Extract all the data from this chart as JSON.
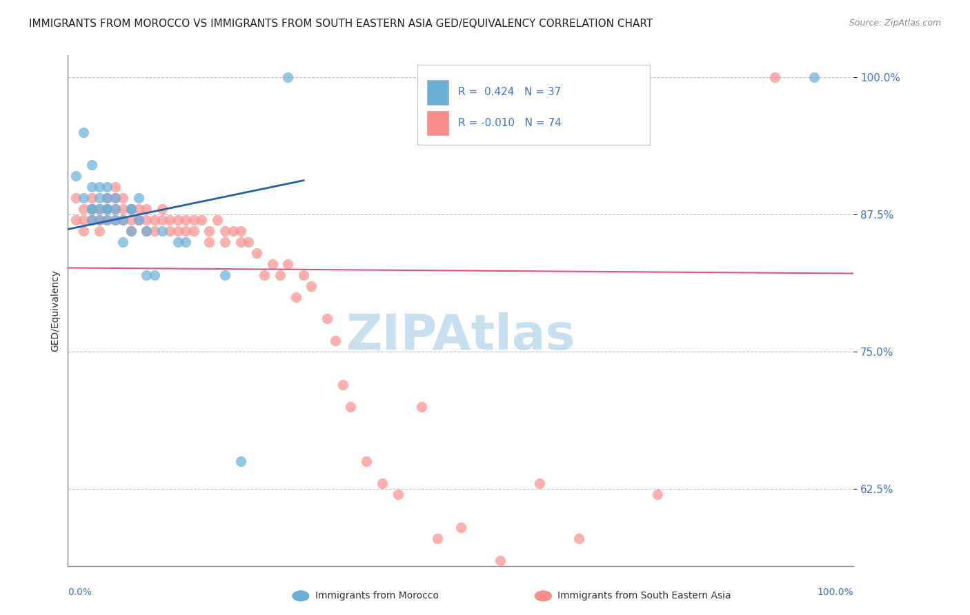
{
  "title": "IMMIGRANTS FROM MOROCCO VS IMMIGRANTS FROM SOUTH EASTERN ASIA GED/EQUIVALENCY CORRELATION CHART",
  "source": "Source: ZipAtlas.com",
  "ylabel": "GED/Equivalency",
  "ytick_labels": [
    "62.5%",
    "75.0%",
    "87.5%",
    "100.0%"
  ],
  "ytick_values": [
    0.625,
    0.75,
    0.875,
    1.0
  ],
  "xlim": [
    0.0,
    1.0
  ],
  "ylim": [
    0.555,
    1.02
  ],
  "series1_label": "Immigrants from Morocco",
  "series2_label": "Immigrants from South Eastern Asia",
  "series1_color": "#6baed6",
  "series2_color": "#fc8d8d",
  "series1_R": 0.424,
  "series1_N": 37,
  "series2_R": -0.01,
  "series2_N": 74,
  "r_text_color": "#4472c4",
  "watermark_color": "#c8dff0",
  "blue_line_color": "#2060b0",
  "pink_line_color": "#e05080",
  "background_color": "#ffffff",
  "grid_color": "#c0c0c0",
  "title_fontsize": 11,
  "series1_x": [
    0.01,
    0.02,
    0.02,
    0.03,
    0.03,
    0.03,
    0.03,
    0.03,
    0.04,
    0.04,
    0.04,
    0.04,
    0.05,
    0.05,
    0.05,
    0.05,
    0.05,
    0.06,
    0.06,
    0.06,
    0.07,
    0.07,
    0.08,
    0.08,
    0.08,
    0.09,
    0.09,
    0.1,
    0.1,
    0.11,
    0.12,
    0.14,
    0.15,
    0.2,
    0.22,
    0.28,
    0.95
  ],
  "series1_y": [
    0.91,
    0.95,
    0.89,
    0.92,
    0.9,
    0.88,
    0.87,
    0.88,
    0.9,
    0.89,
    0.88,
    0.87,
    0.9,
    0.89,
    0.88,
    0.88,
    0.87,
    0.89,
    0.88,
    0.87,
    0.85,
    0.87,
    0.88,
    0.88,
    0.86,
    0.89,
    0.87,
    0.82,
    0.86,
    0.82,
    0.86,
    0.85,
    0.85,
    0.82,
    0.65,
    1.0,
    1.0
  ],
  "series2_x": [
    0.01,
    0.01,
    0.02,
    0.02,
    0.02,
    0.03,
    0.03,
    0.03,
    0.04,
    0.04,
    0.04,
    0.05,
    0.05,
    0.05,
    0.06,
    0.06,
    0.06,
    0.06,
    0.07,
    0.07,
    0.07,
    0.08,
    0.08,
    0.08,
    0.09,
    0.09,
    0.1,
    0.1,
    0.1,
    0.11,
    0.11,
    0.12,
    0.12,
    0.13,
    0.13,
    0.14,
    0.14,
    0.15,
    0.15,
    0.16,
    0.16,
    0.17,
    0.18,
    0.18,
    0.19,
    0.2,
    0.2,
    0.21,
    0.22,
    0.22,
    0.23,
    0.24,
    0.25,
    0.26,
    0.27,
    0.28,
    0.29,
    0.3,
    0.31,
    0.33,
    0.34,
    0.35,
    0.36,
    0.38,
    0.4,
    0.42,
    0.45,
    0.47,
    0.5,
    0.55,
    0.6,
    0.65,
    0.75,
    0.9
  ],
  "series2_y": [
    0.89,
    0.87,
    0.88,
    0.87,
    0.86,
    0.89,
    0.88,
    0.87,
    0.88,
    0.87,
    0.86,
    0.89,
    0.88,
    0.87,
    0.9,
    0.89,
    0.88,
    0.87,
    0.89,
    0.88,
    0.87,
    0.88,
    0.87,
    0.86,
    0.88,
    0.87,
    0.88,
    0.87,
    0.86,
    0.87,
    0.86,
    0.88,
    0.87,
    0.87,
    0.86,
    0.87,
    0.86,
    0.87,
    0.86,
    0.87,
    0.86,
    0.87,
    0.86,
    0.85,
    0.87,
    0.86,
    0.85,
    0.86,
    0.86,
    0.85,
    0.85,
    0.84,
    0.82,
    0.83,
    0.82,
    0.83,
    0.8,
    0.82,
    0.81,
    0.78,
    0.76,
    0.72,
    0.7,
    0.65,
    0.63,
    0.62,
    0.7,
    0.58,
    0.59,
    0.56,
    0.63,
    0.58,
    0.62,
    1.0
  ]
}
